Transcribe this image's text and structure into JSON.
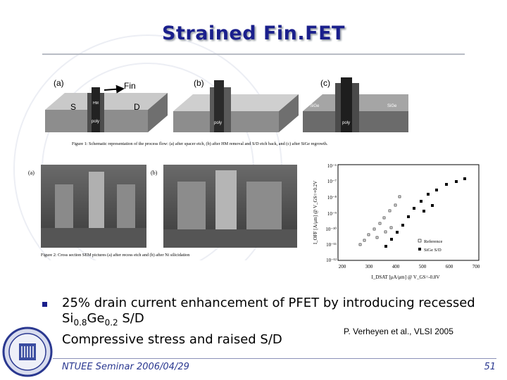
{
  "slide": {
    "title": "Strained Fin.FET",
    "footer": "NTUEE Seminar 2006/04/29",
    "page_number": "51"
  },
  "figure1": {
    "labels": {
      "a": "(a)",
      "b": "(b)",
      "c": "(c)",
      "fin": "Fin",
      "s": "S",
      "d": "D",
      "poly": "poly",
      "sige": "SiGe",
      "hm": "HM"
    },
    "caption": "Figure 1: Schematic representation of the process flow: (a) after spacer etch, (b) after HM removal and S/D etch back, and (c) after SiGe regrowth."
  },
  "figure2": {
    "labels": {
      "a": "(a)",
      "b": "(b)"
    },
    "caption": "Figure 2: Cross section SEM pictures (a) after recess etch and (b) after Ni silicidation"
  },
  "figure3": {
    "ylabel": "I_OFF [A/μm] @ V_GS=+0.2V",
    "xlabel": "I_DSAT [μA/μm] @ V_GS=-0.8V",
    "yticks": [
      "10⁻⁶",
      "10⁻⁷",
      "10⁻⁸",
      "10⁻⁹",
      "10⁻¹⁰",
      "10⁻¹¹",
      "10⁻¹²"
    ],
    "xticks": [
      "200",
      "300",
      "400",
      "500",
      "600",
      "700"
    ],
    "legend": [
      "Reference",
      "SiGe S/D"
    ]
  },
  "bullets": [
    {
      "text_before": "25% drain current enhancement of PFET by introducing recessed Si",
      "sub1": "0.8",
      "mid": "Ge",
      "sub2": "0.2",
      "text_after": " S/D"
    },
    {
      "text_before": "Compressive stress and raised S/D",
      "sub1": "",
      "mid": "",
      "sub2": "",
      "text_after": ""
    }
  ],
  "reference": "P. Verheyen et al., VLSI 2005",
  "colors": {
    "title": "#1a1f8c",
    "footer": "#2a3890",
    "bullet": "#1a1f8c"
  }
}
